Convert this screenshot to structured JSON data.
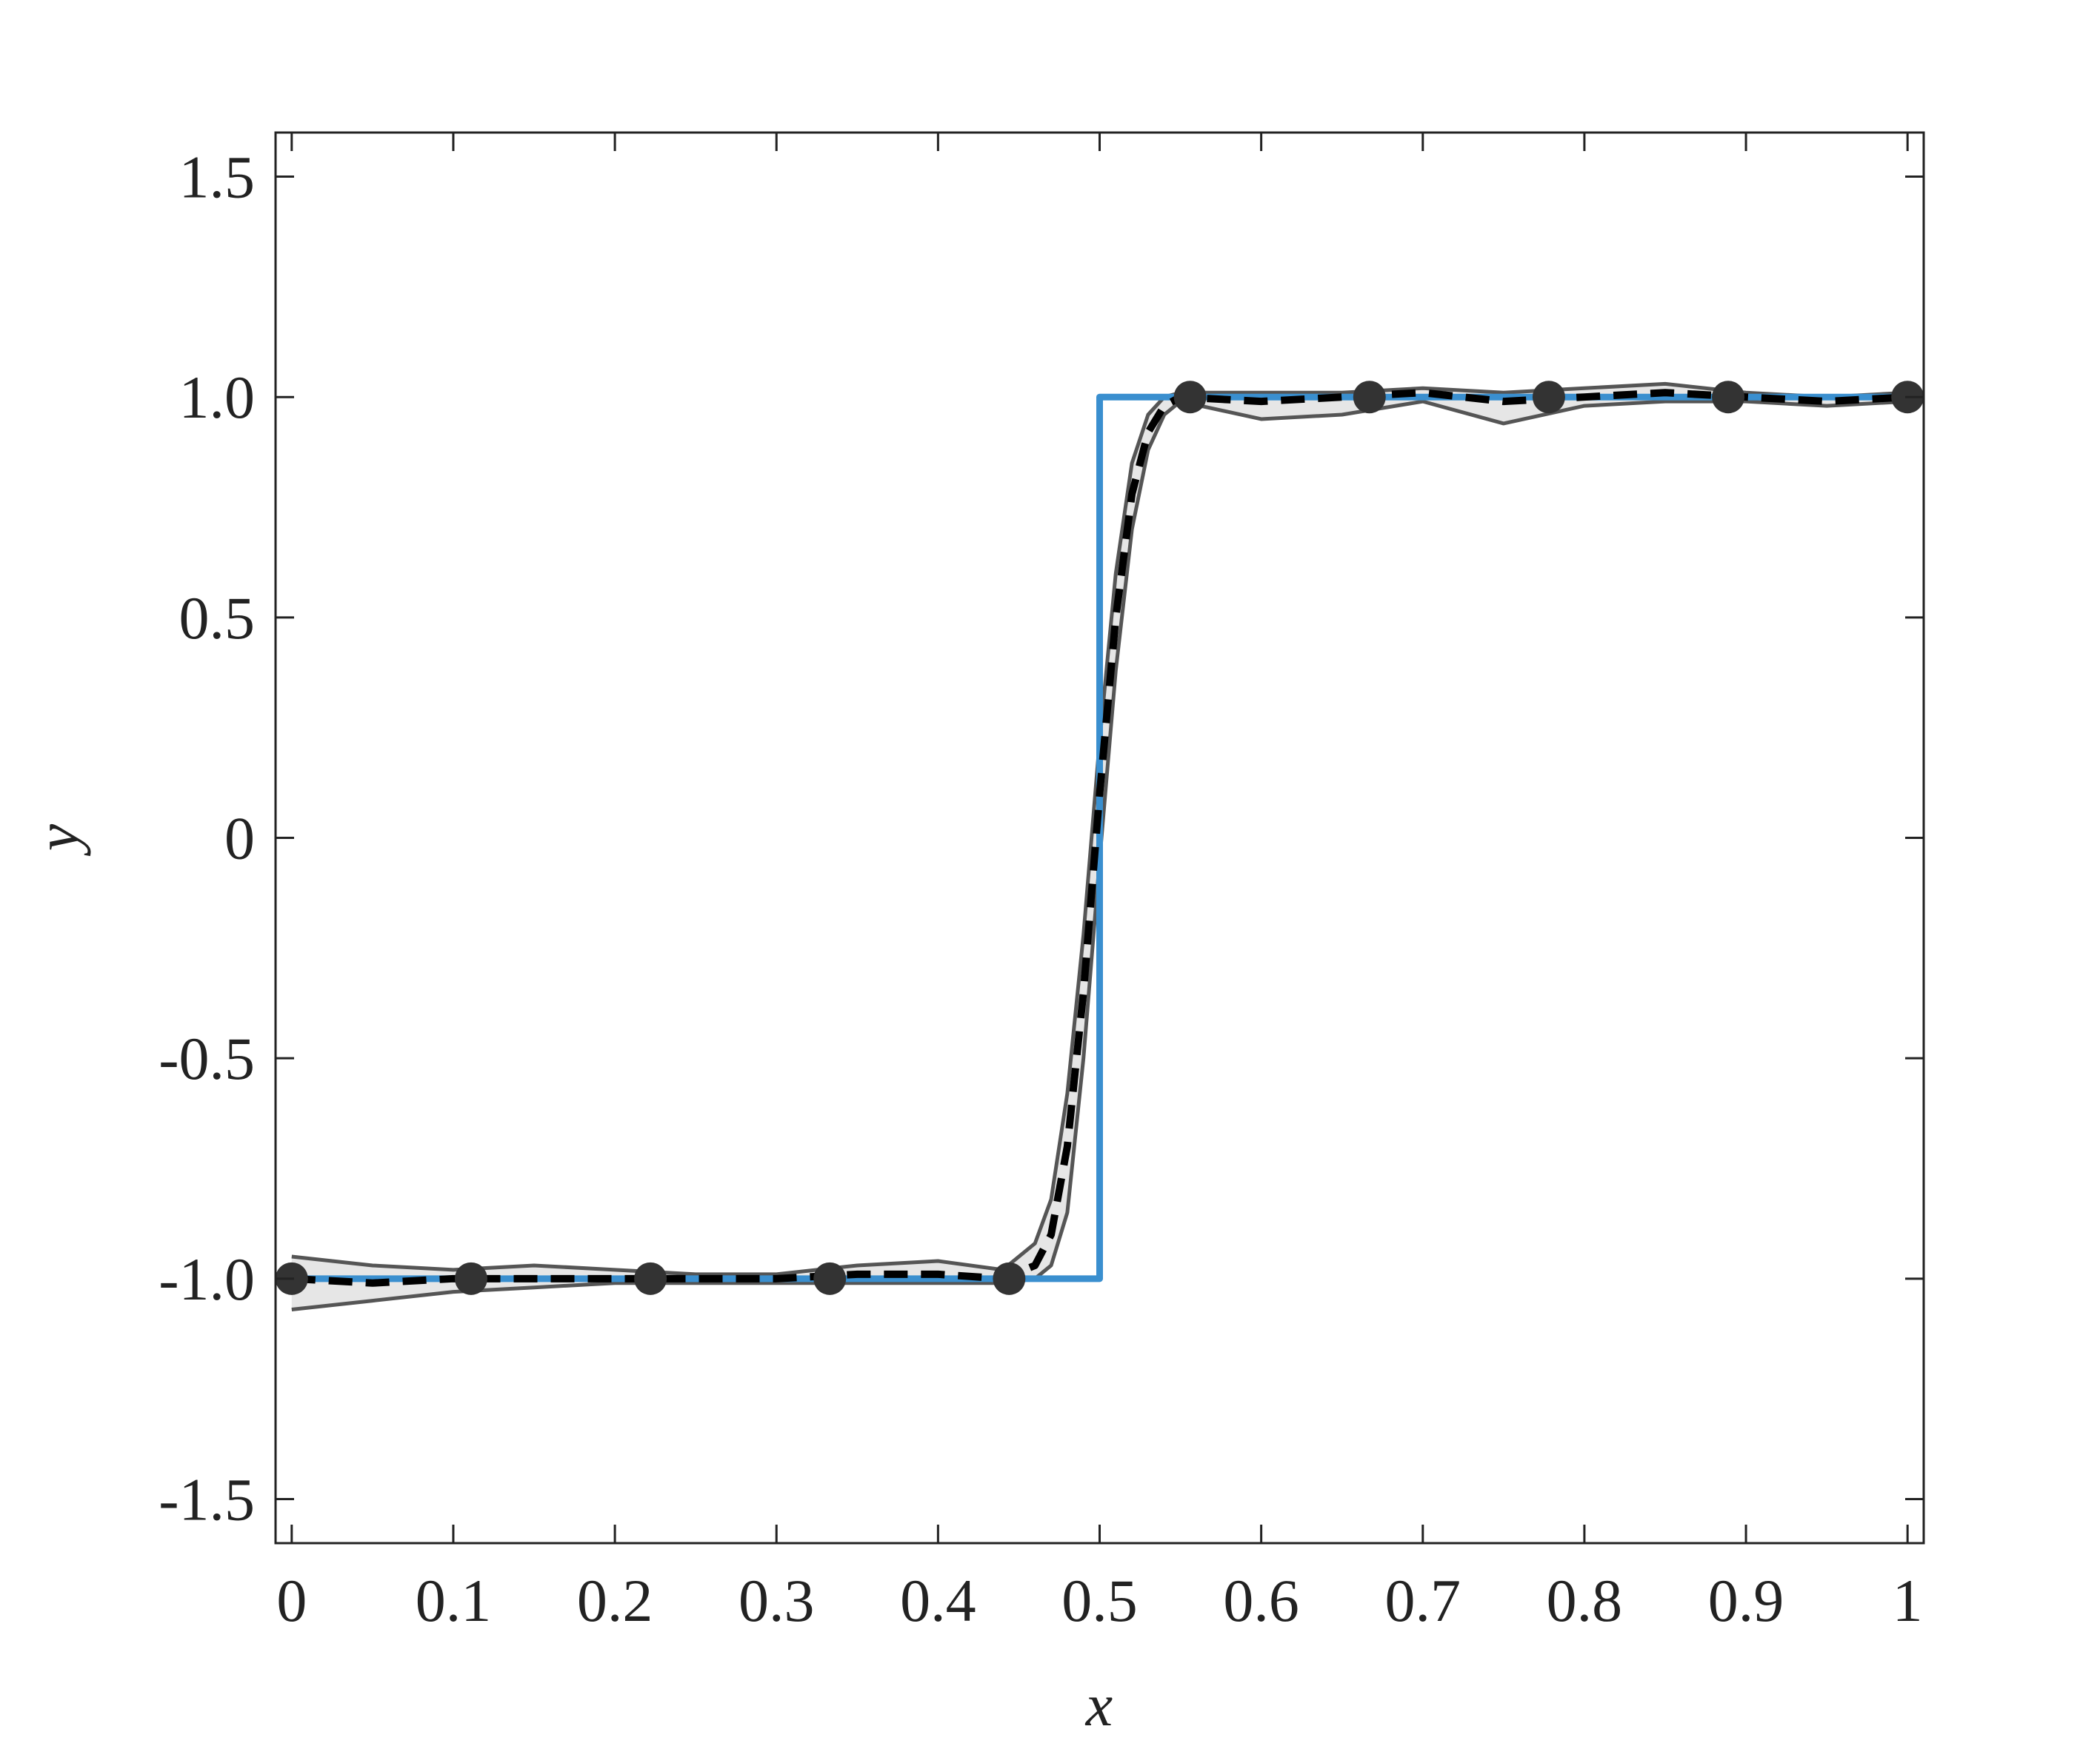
{
  "chart_data": {
    "type": "line",
    "xlabel": "x",
    "ylabel": "y",
    "xlim": [
      -0.01,
      1.01
    ],
    "ylim": [
      -1.6,
      1.6
    ],
    "xticks": [
      0,
      0.1,
      0.2,
      0.3,
      0.4,
      0.5,
      0.6,
      0.7,
      0.8,
      0.9,
      1
    ],
    "yticks": [
      1.5,
      {
        "value": 1,
        "label": "1.0"
      },
      0.5,
      0,
      -0.5,
      {
        "value": -1,
        "label": "-1.0"
      },
      -1.5
    ],
    "series": [
      {
        "role": "band-upper",
        "color": "#555555",
        "x": [
          0,
          0.05,
          0.1,
          0.15,
          0.2,
          0.25,
          0.3,
          0.35,
          0.4,
          0.44,
          0.46,
          0.47,
          0.48,
          0.49,
          0.5,
          0.51,
          0.52,
          0.53,
          0.54,
          0.55,
          0.6,
          0.65,
          0.7,
          0.75,
          0.8,
          0.85,
          0.9,
          0.95,
          1
        ],
        "values": [
          -0.95,
          -0.97,
          -0.98,
          -0.97,
          -0.98,
          -0.99,
          -0.99,
          -0.97,
          -0.96,
          -0.98,
          -0.92,
          -0.82,
          -0.58,
          -0.22,
          0.22,
          0.6,
          0.85,
          0.96,
          1.0,
          1.01,
          1.01,
          1.01,
          1.02,
          1.01,
          1.02,
          1.03,
          1.01,
          1.0,
          1.01
        ]
      },
      {
        "role": "band-lower",
        "color": "#555555",
        "x": [
          0,
          0.05,
          0.1,
          0.15,
          0.2,
          0.25,
          0.3,
          0.35,
          0.4,
          0.44,
          0.46,
          0.47,
          0.48,
          0.49,
          0.5,
          0.51,
          0.52,
          0.53,
          0.54,
          0.55,
          0.6,
          0.65,
          0.7,
          0.75,
          0.8,
          0.85,
          0.9,
          0.95,
          1
        ],
        "values": [
          -1.07,
          -1.05,
          -1.03,
          -1.02,
          -1.01,
          -1.01,
          -1.01,
          -1.01,
          -1.01,
          -1.01,
          -1.0,
          -0.97,
          -0.85,
          -0.5,
          -0.05,
          0.38,
          0.7,
          0.88,
          0.96,
          0.99,
          0.95,
          0.96,
          0.99,
          0.94,
          0.98,
          0.99,
          0.99,
          0.98,
          0.99
        ]
      },
      {
        "role": "step",
        "color": "#3a8fcf",
        "x": [
          0,
          0.5,
          0.5,
          1
        ],
        "values": [
          -1,
          -1,
          1,
          1
        ]
      },
      {
        "role": "mean",
        "color": "#000000",
        "x": [
          0,
          0.05,
          0.1,
          0.15,
          0.2,
          0.25,
          0.3,
          0.35,
          0.4,
          0.44,
          0.46,
          0.47,
          0.48,
          0.49,
          0.5,
          0.51,
          0.52,
          0.53,
          0.54,
          0.55,
          0.6,
          0.65,
          0.7,
          0.75,
          0.8,
          0.85,
          0.9,
          0.95,
          1
        ],
        "values": [
          -1,
          -1.01,
          -1,
          -1,
          -1,
          -1,
          -1,
          -0.99,
          -0.99,
          -1,
          -0.97,
          -0.9,
          -0.7,
          -0.35,
          0.1,
          0.5,
          0.78,
          0.92,
          0.98,
          1,
          0.99,
          1,
          1.01,
          0.99,
          1,
          1.01,
          1,
          0.99,
          1
        ]
      },
      {
        "role": "points",
        "color": "#333333",
        "x": [
          0,
          0.111,
          0.222,
          0.333,
          0.444,
          0.556,
          0.667,
          0.778,
          0.889,
          1
        ],
        "values": [
          -1,
          -1,
          -1,
          -1,
          -1,
          1,
          1,
          1,
          1,
          1
        ]
      }
    ]
  }
}
